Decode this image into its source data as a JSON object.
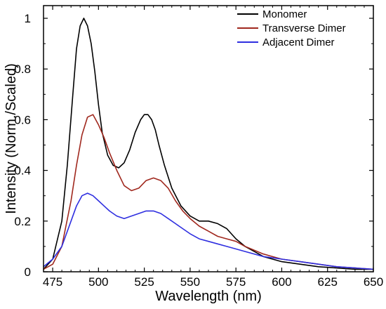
{
  "chart_data": {
    "type": "line",
    "title": "",
    "xlabel": "Wavelength (nm)",
    "ylabel": "Intensity (Norm./Scaled)",
    "xlim": [
      470,
      650
    ],
    "ylim": [
      0,
      1.05
    ],
    "x_ticks": [
      475,
      500,
      525,
      550,
      575,
      600,
      625,
      650
    ],
    "y_ticks": [
      0,
      0.2,
      0.4,
      0.6,
      0.8,
      1
    ],
    "y_tick_labels": [
      "0",
      "0.2",
      "0.4",
      "0.6",
      "0.8",
      "1"
    ],
    "grid": false,
    "legend_position": "top-right",
    "series": [
      {
        "name": "Monomer",
        "color": "#000000",
        "x": [
          470,
          475,
          480,
          483,
          486,
          488,
          490,
          492,
          494,
          496,
          498,
          500,
          502,
          505,
          508,
          511,
          514,
          517,
          520,
          523,
          525,
          527,
          529,
          531,
          533,
          536,
          540,
          545,
          550,
          555,
          560,
          565,
          570,
          575,
          580,
          585,
          590,
          595,
          600,
          610,
          620,
          630,
          640,
          650
        ],
        "y": [
          0.01,
          0.05,
          0.2,
          0.42,
          0.7,
          0.88,
          0.97,
          1.0,
          0.97,
          0.9,
          0.79,
          0.66,
          0.55,
          0.46,
          0.42,
          0.41,
          0.43,
          0.48,
          0.55,
          0.6,
          0.62,
          0.62,
          0.6,
          0.56,
          0.5,
          0.42,
          0.33,
          0.26,
          0.22,
          0.2,
          0.2,
          0.19,
          0.17,
          0.13,
          0.1,
          0.08,
          0.06,
          0.05,
          0.04,
          0.03,
          0.02,
          0.015,
          0.01,
          0.01
        ]
      },
      {
        "name": "Transverse Dimer",
        "color": "#a0281e",
        "x": [
          470,
          475,
          480,
          485,
          488,
          491,
          494,
          497,
          500,
          503,
          506,
          510,
          514,
          518,
          522,
          526,
          530,
          534,
          538,
          542,
          546,
          550,
          555,
          560,
          565,
          570,
          575,
          580,
          590,
          600,
          610,
          620,
          630,
          640,
          650
        ],
        "y": [
          0.01,
          0.03,
          0.1,
          0.28,
          0.42,
          0.54,
          0.61,
          0.62,
          0.58,
          0.53,
          0.47,
          0.4,
          0.34,
          0.32,
          0.33,
          0.36,
          0.37,
          0.36,
          0.33,
          0.28,
          0.24,
          0.21,
          0.18,
          0.16,
          0.14,
          0.13,
          0.12,
          0.1,
          0.07,
          0.05,
          0.04,
          0.03,
          0.02,
          0.015,
          0.01
        ]
      },
      {
        "name": "Adjacent Dimer",
        "color": "#2f2fe0",
        "x": [
          470,
          475,
          480,
          485,
          488,
          491,
          494,
          497,
          500,
          503,
          506,
          510,
          514,
          518,
          522,
          526,
          530,
          534,
          538,
          542,
          546,
          550,
          555,
          560,
          565,
          570,
          575,
          580,
          590,
          600,
          610,
          620,
          630,
          640,
          650
        ],
        "y": [
          0.02,
          0.05,
          0.1,
          0.2,
          0.26,
          0.3,
          0.31,
          0.3,
          0.28,
          0.26,
          0.24,
          0.22,
          0.21,
          0.22,
          0.23,
          0.24,
          0.24,
          0.23,
          0.21,
          0.19,
          0.17,
          0.15,
          0.13,
          0.12,
          0.11,
          0.1,
          0.09,
          0.08,
          0.06,
          0.05,
          0.04,
          0.03,
          0.02,
          0.015,
          0.01
        ]
      }
    ]
  }
}
